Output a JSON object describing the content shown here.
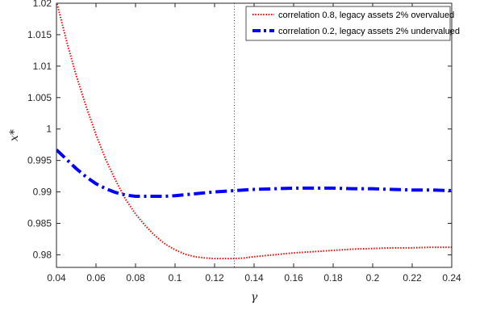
{
  "chart_data": {
    "type": "line",
    "xlabel": "γ",
    "ylabel": "x*",
    "xlim": [
      0.04,
      0.24
    ],
    "ylim": [
      0.978,
      1.02
    ],
    "xticks": [
      0.04,
      0.06,
      0.08,
      0.1,
      0.12,
      0.14,
      0.16,
      0.18,
      0.2,
      0.22,
      0.24
    ],
    "xtick_labels": [
      "0.04",
      "0.06",
      "0.08",
      "0.1",
      "0.12",
      "0.14",
      "0.16",
      "0.18",
      "0.2",
      "0.22",
      "0.24"
    ],
    "yticks": [
      0.98,
      0.985,
      0.99,
      0.995,
      1,
      1.005,
      1.01,
      1.015,
      1.02
    ],
    "ytick_labels": [
      "0.98",
      "0.985",
      "0.99",
      "0.995",
      "1",
      "1.005",
      "1.01",
      "1.015",
      "1.02"
    ],
    "grid": false,
    "legend_position": "top-right",
    "vertical_reference_line": {
      "x": 0.13,
      "color": "#444444",
      "style": "dotted"
    },
    "series": [
      {
        "name": "correlation 0.8, legacy assets 2% overvalued",
        "color": "#ff0000",
        "style": "dotted",
        "x": [
          0.04,
          0.045,
          0.05,
          0.055,
          0.06,
          0.065,
          0.07,
          0.075,
          0.08,
          0.085,
          0.09,
          0.095,
          0.1,
          0.105,
          0.11,
          0.115,
          0.12,
          0.125,
          0.13,
          0.135,
          0.14,
          0.15,
          0.16,
          0.17,
          0.18,
          0.19,
          0.2,
          0.21,
          0.22,
          0.23,
          0.24
        ],
        "y": [
          1.0203,
          1.0141,
          1.0085,
          1.0036,
          0.9991,
          0.9951,
          0.9918,
          0.9888,
          0.9865,
          0.9846,
          0.983,
          0.9817,
          0.9808,
          0.9801,
          0.9797,
          0.9795,
          0.9794,
          0.9794,
          0.9794,
          0.9795,
          0.9797,
          0.98,
          0.9803,
          0.9805,
          0.9807,
          0.9809,
          0.981,
          0.9811,
          0.9811,
          0.9812,
          0.9812
        ]
      },
      {
        "name": "correlation 0.2, legacy assets 2% undervalued",
        "color": "#0000ff",
        "style": "dashdot",
        "x": [
          0.04,
          0.045,
          0.05,
          0.055,
          0.06,
          0.065,
          0.07,
          0.075,
          0.08,
          0.085,
          0.09,
          0.095,
          0.1,
          0.11,
          0.12,
          0.13,
          0.14,
          0.15,
          0.16,
          0.17,
          0.18,
          0.19,
          0.2,
          0.21,
          0.22,
          0.23,
          0.24
        ],
        "y": [
          0.9967,
          0.9952,
          0.9937,
          0.9924,
          0.9913,
          0.9905,
          0.9899,
          0.9895,
          0.9893,
          0.9893,
          0.9893,
          0.9893,
          0.9894,
          0.9897,
          0.99,
          0.9902,
          0.9904,
          0.9905,
          0.9906,
          0.9906,
          0.9906,
          0.9905,
          0.9905,
          0.9904,
          0.9903,
          0.9903,
          0.9902
        ]
      }
    ]
  }
}
